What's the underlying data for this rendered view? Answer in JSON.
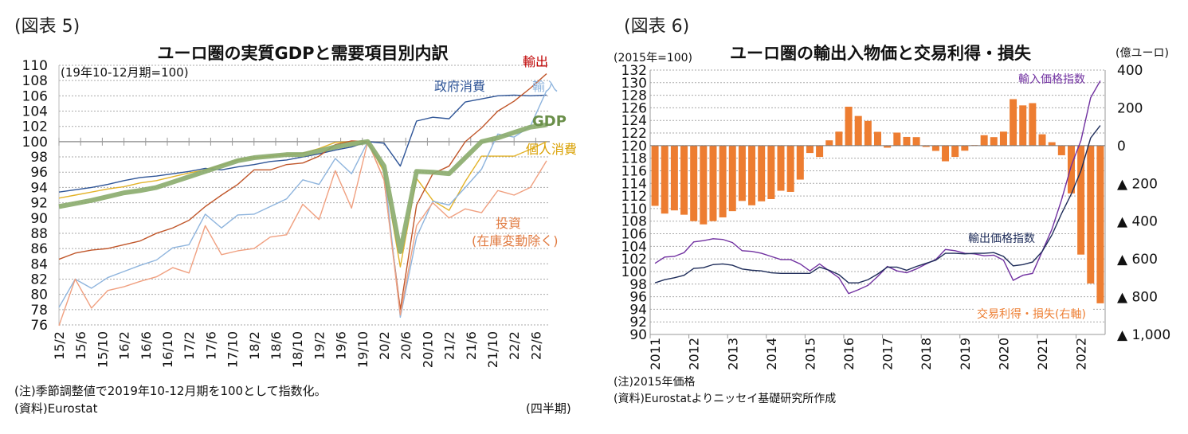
{
  "chart_data": [
    {
      "type": "line",
      "figure_label": "(図表 5)",
      "title": "ユーロ圏の実質GDPと需要項目別内訳",
      "subtitle": "(19年10-12月期=100)",
      "x_tick_labels": [
        "15/2",
        "15/6",
        "15/10",
        "16/2",
        "16/6",
        "16/10",
        "17/2",
        "17/6",
        "17/10",
        "18/2",
        "18/6",
        "18/10",
        "19/2",
        "19/6",
        "19/10",
        "20/2",
        "20/6",
        "20/10",
        "21/2",
        "21/6",
        "21/10",
        "22/2",
        "22/6"
      ],
      "x_unit": "(四半期)",
      "x": [
        "15/2",
        "15/5",
        "15/8",
        "15/11",
        "16/2",
        "16/5",
        "16/8",
        "16/11",
        "17/2",
        "17/5",
        "17/8",
        "17/11",
        "18/2",
        "18/5",
        "18/8",
        "18/11",
        "19/2",
        "19/5",
        "19/8",
        "19/11",
        "20/2",
        "20/5",
        "20/8",
        "20/11",
        "21/2",
        "21/5",
        "21/8",
        "21/11",
        "22/2",
        "22/5",
        "22/8"
      ],
      "ylim": [
        76,
        110
      ],
      "y_ticks": [
        76,
        78,
        80,
        82,
        84,
        86,
        88,
        90,
        92,
        94,
        96,
        98,
        100,
        102,
        104,
        106,
        108,
        110
      ],
      "grid": true,
      "series": [
        {
          "name": "政府消費",
          "color": "#2f5597",
          "values": [
            93.4,
            93.7,
            94.0,
            94.4,
            94.9,
            95.3,
            95.5,
            95.8,
            96.1,
            96.5,
            96.3,
            96.7,
            97.0,
            97.4,
            97.6,
            98.0,
            98.4,
            98.9,
            99.3,
            100.0,
            99.8,
            96.8,
            102.7,
            103.2,
            103.0,
            105.2,
            105.6,
            106.0,
            106.1,
            106.0,
            106.1
          ]
        },
        {
          "name": "個人消費",
          "color": "#e3b32a",
          "values": [
            92.6,
            93.0,
            93.4,
            93.8,
            94.1,
            94.6,
            94.9,
            95.4,
            95.9,
            96.3,
            96.9,
            97.6,
            97.9,
            98.1,
            98.3,
            98.5,
            99.1,
            99.9,
            100.0,
            100.0,
            96.0,
            83.6,
            95.2,
            92.3,
            91.0,
            94.8,
            98.1,
            98.1,
            98.1,
            99.0,
            100.0
          ]
        },
        {
          "name": "輸出",
          "color": "#c0562a",
          "values": [
            84.6,
            85.4,
            85.8,
            86.0,
            86.5,
            87.0,
            88.0,
            88.7,
            89.7,
            91.5,
            93.0,
            94.4,
            96.3,
            96.3,
            97.0,
            97.2,
            98.1,
            99.6,
            100.1,
            100.0,
            95.0,
            78.0,
            91.7,
            95.8,
            96.8,
            100.0,
            101.8,
            104.0,
            105.3,
            107.0,
            108.9
          ]
        },
        {
          "name": "輸入",
          "color": "#8eb4dd",
          "values": [
            78.3,
            82.0,
            80.8,
            82.2,
            83.0,
            83.8,
            84.5,
            86.1,
            86.5,
            90.5,
            88.7,
            90.4,
            90.5,
            91.5,
            92.5,
            95.0,
            94.4,
            97.8,
            95.8,
            100.0,
            96.5,
            77.0,
            87.5,
            92.2,
            91.7,
            94.0,
            96.4,
            101.0,
            100.6,
            102.0,
            106.7
          ]
        },
        {
          "name": "投資(在庫変動除く)",
          "label_line1": "投資",
          "label_line2": "(在庫変動除く)",
          "color": "#f0a080",
          "values": [
            75.9,
            82.0,
            78.2,
            80.5,
            81.0,
            81.7,
            82.3,
            83.5,
            82.8,
            89.0,
            85.2,
            85.7,
            86.0,
            87.5,
            87.8,
            91.8,
            89.8,
            96.2,
            91.3,
            100.0,
            95.0,
            77.3,
            89.0,
            92.0,
            90.0,
            91.2,
            90.7,
            93.6,
            93.0,
            94.0,
            97.5
          ]
        },
        {
          "name": "GDP",
          "color": "#8aab6c",
          "values": [
            91.5,
            91.9,
            92.3,
            92.8,
            93.3,
            93.6,
            94.0,
            94.7,
            95.4,
            96.1,
            96.8,
            97.5,
            97.9,
            98.1,
            98.3,
            98.3,
            98.8,
            99.3,
            99.7,
            100.0,
            96.8,
            85.6,
            96.1,
            96.0,
            95.8,
            97.9,
            100.0,
            100.5,
            101.2,
            101.9,
            102.2
          ]
        }
      ],
      "notes": [
        "(注)季節調整値で2019年10-12月期を100として指数化。",
        "(資料)Eurostat"
      ]
    },
    {
      "type": "bar+line",
      "figure_label": "(図表 6)",
      "title": "ユーロ圏の輸出入物価と交易利得・損失",
      "left_unit": "(2015年=100)",
      "right_unit": "(億ユーロ)",
      "x_tick_labels": [
        "2011",
        "2012",
        "2013",
        "2014",
        "2015",
        "2016",
        "2017",
        "2018",
        "2019",
        "2020",
        "2021",
        "2022"
      ],
      "x_frequency": "quarterly, 2011Q1–2022Q3",
      "ylim_left": [
        90,
        132
      ],
      "y_ticks_left": [
        90,
        92,
        94,
        96,
        98,
        100,
        102,
        104,
        106,
        108,
        110,
        112,
        114,
        116,
        118,
        120,
        122,
        124,
        126,
        128,
        130,
        132
      ],
      "ylim_right": [
        -1000,
        400
      ],
      "y_ticks_right": [
        {
          "v": 400,
          "label": "400"
        },
        {
          "v": 200,
          "label": "200"
        },
        {
          "v": 0,
          "label": "0"
        },
        {
          "v": -200,
          "label": "▲ 200"
        },
        {
          "v": -400,
          "label": "▲ 400"
        },
        {
          "v": -600,
          "label": "▲ 600"
        },
        {
          "v": -800,
          "label": "▲ 800"
        },
        {
          "v": -1000,
          "label": "▲ 1,000"
        }
      ],
      "grid": true,
      "bars": {
        "name": "交易利得・損失(右軸)",
        "color": "#ed7d31",
        "values": [
          -319,
          -360,
          -343,
          -366,
          -400,
          -417,
          -400,
          -380,
          -347,
          -293,
          -316,
          -295,
          -283,
          -239,
          -245,
          -180,
          -39,
          -60,
          28,
          74,
          206,
          157,
          131,
          73,
          -11,
          69,
          46,
          45,
          -7,
          -28,
          -83,
          -60,
          -27,
          3,
          55,
          45,
          74,
          246,
          213,
          225,
          60,
          18,
          -51,
          -253,
          -577,
          -730,
          -835
        ]
      },
      "lines": [
        {
          "name": "輸入価格指数",
          "color": "#7030a0",
          "values": [
            101.3,
            102.3,
            102.4,
            103.0,
            104.7,
            104.9,
            105.2,
            105.1,
            104.6,
            103.3,
            103.2,
            102.9,
            102.4,
            101.9,
            101.9,
            101.2,
            100.1,
            101.2,
            100.1,
            99.0,
            96.5,
            97.1,
            97.8,
            99.2,
            100.8,
            100.1,
            99.8,
            100.4,
            101.2,
            101.9,
            103.5,
            103.3,
            102.9,
            102.8,
            102.5,
            102.6,
            101.8,
            98.6,
            99.4,
            99.7,
            103.2,
            106.7,
            111.4,
            116.8,
            120.8,
            127.6,
            130.3
          ]
        },
        {
          "name": "輸出価格指数",
          "color": "#1f2d5a",
          "values": [
            98.2,
            98.7,
            99.0,
            99.4,
            100.5,
            100.6,
            101.1,
            101.2,
            101.0,
            100.4,
            100.2,
            100.1,
            99.8,
            99.7,
            99.7,
            99.7,
            99.7,
            100.7,
            100.2,
            99.5,
            98.2,
            98.2,
            98.7,
            99.6,
            100.7,
            100.7,
            100.2,
            100.8,
            101.3,
            101.8,
            102.9,
            102.9,
            102.8,
            102.9,
            102.9,
            103.0,
            102.4,
            100.9,
            101.1,
            101.5,
            103.2,
            105.8,
            109.2,
            112.3,
            116.0,
            121.2,
            123.2
          ]
        }
      ],
      "notes": [
        "(注)2015年価格",
        "(資料)Eurostatよりニッセイ基礎研究所作成"
      ]
    }
  ]
}
